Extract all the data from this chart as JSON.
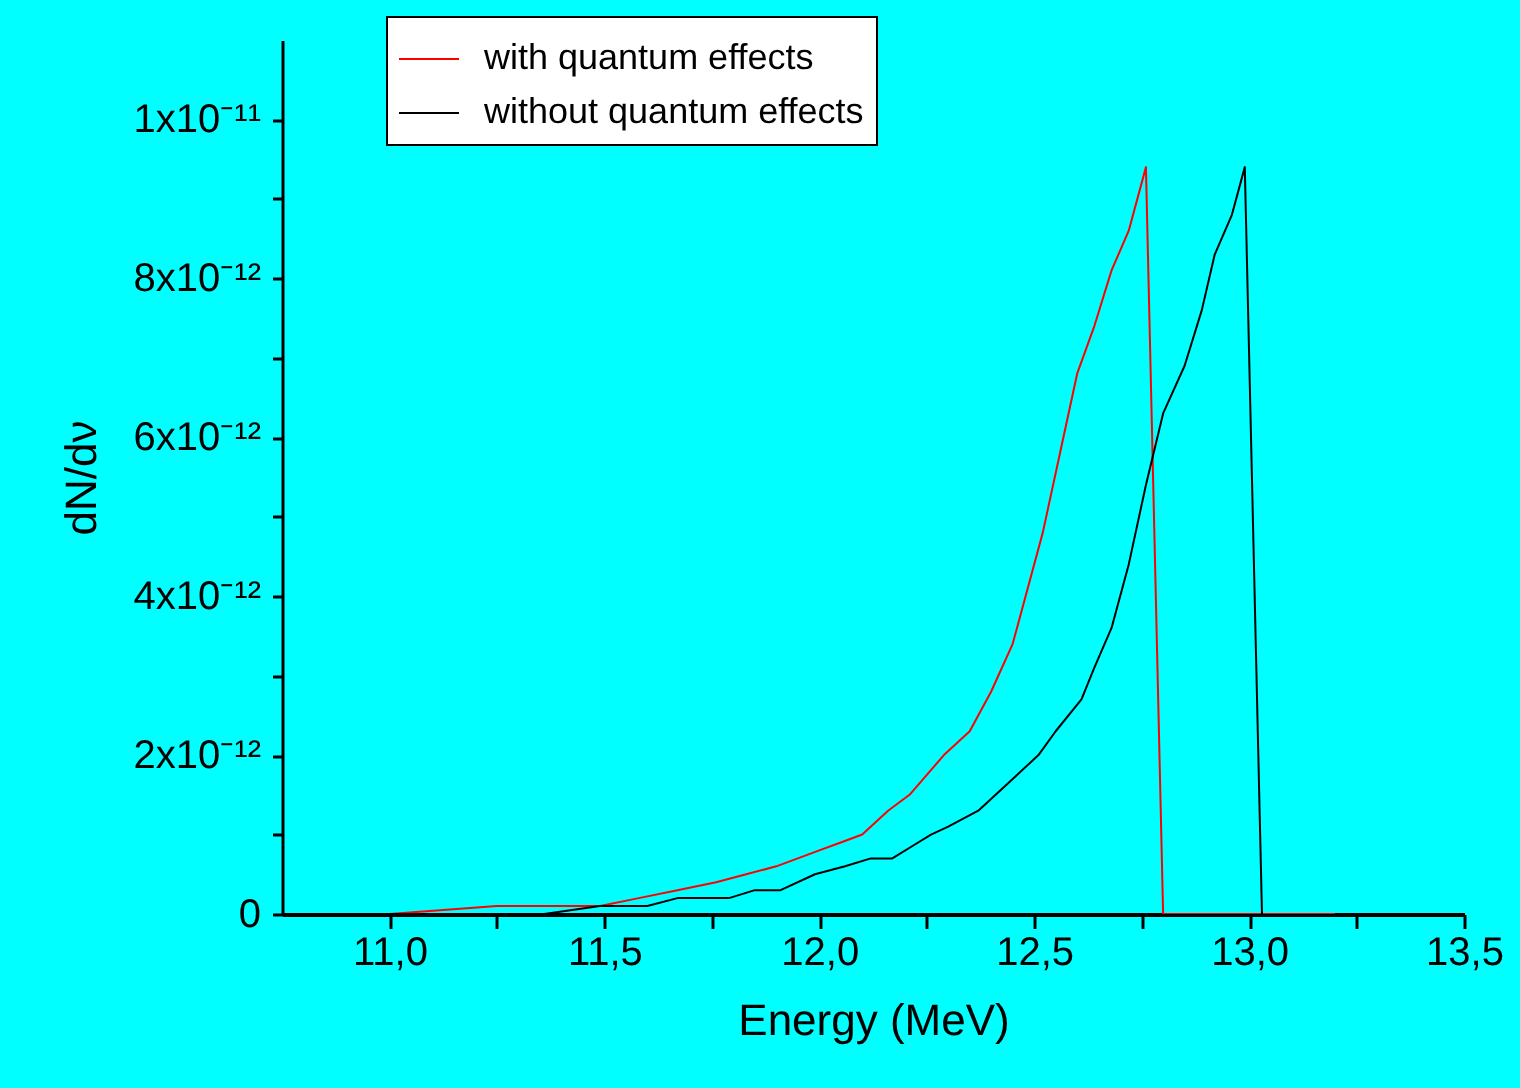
{
  "chart_data": {
    "type": "line",
    "xlabel": "Energy (MeV)",
    "ylabel": "dN/dν",
    "xlim": [
      10.75,
      13.5
    ],
    "ylim": [
      0,
      1.1e-11
    ],
    "xticks": [
      {
        "value": 11,
        "label": "11,0"
      },
      {
        "value": 11.25,
        "label": null
      },
      {
        "value": 11.5,
        "label": "11,5"
      },
      {
        "value": 11.75,
        "label": null
      },
      {
        "value": 12,
        "label": "12,0"
      },
      {
        "value": 12.25,
        "label": null
      },
      {
        "value": 12.5,
        "label": "12,5"
      },
      {
        "value": 12.75,
        "label": null
      },
      {
        "value": 13,
        "label": "13,0"
      },
      {
        "value": 13.25,
        "label": null
      },
      {
        "value": 13.5,
        "label": "13,5"
      }
    ],
    "yticks": [
      0,
      {
        "value": 1e-12,
        "label": null
      },
      {
        "value": 2e-12,
        "label": "2x10⁻¹²"
      },
      {
        "value": 3e-12,
        "label": null
      },
      {
        "value": 4e-12,
        "label": "4x10⁻¹²"
      },
      {
        "value": 5e-12,
        "label": null
      },
      {
        "value": 6e-12,
        "label": "6x10⁻¹²"
      },
      {
        "value": 7e-12,
        "label": null
      },
      {
        "value": 8e-12,
        "label": "8x10⁻¹²"
      },
      {
        "value": 9e-12,
        "label": null
      },
      {
        "value": 1e-11,
        "label": "1x10⁻¹¹"
      }
    ],
    "legend": "top",
    "grid": false,
    "line_style": "solid",
    "series": [
      {
        "name": "with quantum effects",
        "color": "#ff0000",
        "x": [
          11.0,
          11.25,
          11.37,
          11.49,
          11.58,
          11.67,
          11.76,
          11.83,
          11.9,
          12.0,
          12.05,
          12.1,
          12.16,
          12.21,
          12.29,
          12.35,
          12.4,
          12.45,
          12.48,
          12.52,
          12.56,
          12.6,
          12.64,
          12.68,
          12.72,
          12.76,
          12.8,
          13.2
        ],
        "values": [
          0,
          1e-13,
          1e-13,
          1e-13,
          2e-13,
          3e-13,
          4e-13,
          5e-13,
          6e-13,
          8e-13,
          9e-13,
          1e-12,
          1.3e-12,
          1.5e-12,
          2e-12,
          2.3e-12,
          2.8e-12,
          3.4e-12,
          4e-12,
          4.8e-12,
          5.8e-12,
          6.8e-12,
          7.4e-12,
          8.1e-12,
          8.6e-12,
          9.4e-12,
          0,
          0
        ]
      },
      {
        "name": "without quantum effects",
        "color": "#000000",
        "x": [
          11.0,
          11.36,
          11.49,
          11.6,
          11.67,
          11.79,
          11.85,
          11.91,
          11.99,
          12.06,
          12.12,
          12.17,
          12.23,
          12.26,
          12.3,
          12.37,
          12.45,
          12.51,
          12.55,
          12.61,
          12.64,
          12.68,
          12.72,
          12.76,
          12.8,
          12.85,
          12.89,
          12.92,
          12.96,
          12.99,
          13.03
        ],
        "values": [
          0,
          0,
          1e-13,
          1e-13,
          2e-13,
          2e-13,
          3e-13,
          3e-13,
          5e-13,
          6e-13,
          7e-13,
          7e-13,
          9e-13,
          1e-12,
          1.1e-12,
          1.3e-12,
          1.7e-12,
          2e-12,
          2.3e-12,
          2.7e-12,
          3.1e-12,
          3.6e-12,
          4.4e-12,
          5.4e-12,
          6.3e-12,
          6.9e-12,
          7.6e-12,
          8.3e-12,
          8.8e-12,
          9.4e-12,
          0
        ]
      }
    ]
  }
}
